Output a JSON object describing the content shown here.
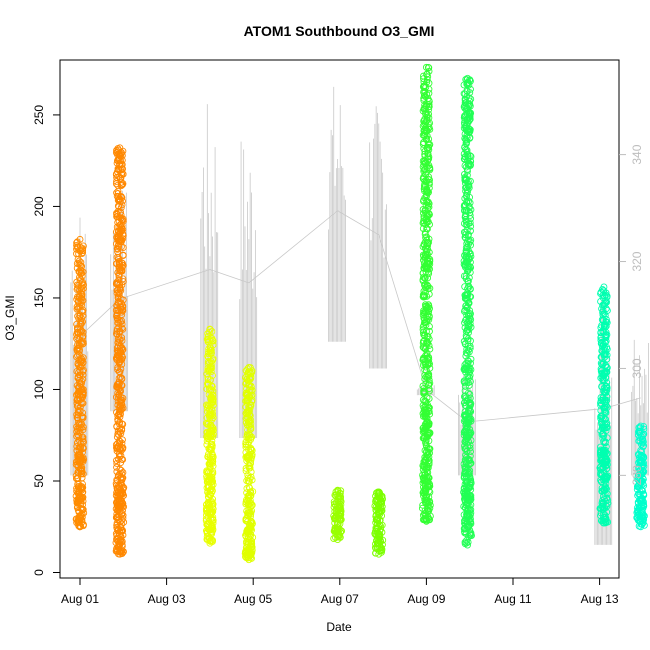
{
  "chart_data": {
    "type": "scatter",
    "title": "ATOM1 Southbound O3_GMI",
    "xlabel": "Date",
    "ylabel": "O3_GMI",
    "x_ticks": [
      "Aug 01",
      "Aug 03",
      "Aug 05",
      "Aug 07",
      "Aug 09",
      "Aug 11",
      "Aug 13"
    ],
    "y_ticks": [
      0,
      50,
      100,
      150,
      200,
      250
    ],
    "y_range": [
      -3,
      280
    ],
    "x_range_days": [
      0.0,
      12.5
    ],
    "right_axis": {
      "ticks": [
        280,
        300,
        320,
        340
      ],
      "range": [
        260.8,
        357.7
      ],
      "color": "#bdbdbd"
    },
    "point_color_gradient": [
      "#ff8c00",
      "#ffff00",
      "#66ff00",
      "#00ff66",
      "#00ffd0"
    ],
    "secondary_line_color": "#c8c8c8",
    "clusters": [
      {
        "day": 0.0,
        "min": 25,
        "max": 182,
        "color": "#ff8c00"
      },
      {
        "day": 0.92,
        "min": 10,
        "max": 232,
        "color": "#ff8800"
      },
      {
        "day": 3.0,
        "min": 16,
        "max": 133,
        "color": "#e8ff00"
      },
      {
        "day": 3.9,
        "min": 7,
        "max": 112,
        "color": "#e0ff00"
      },
      {
        "day": 5.95,
        "min": 18,
        "max": 45,
        "color": "#99ff00"
      },
      {
        "day": 6.9,
        "min": 10,
        "max": 44,
        "color": "#7cff00"
      },
      {
        "day": 8.0,
        "min": 28,
        "max": 276,
        "color": "#33ff33"
      },
      {
        "day": 8.95,
        "min": 15,
        "max": 270,
        "color": "#22ff55"
      },
      {
        "day": 12.1,
        "min": 27,
        "max": 156,
        "color": "#00ffb0"
      },
      {
        "day": 12.95,
        "min": 25,
        "max": 80,
        "color": "#00ffcc"
      }
    ],
    "secondary_series": [
      {
        "day": 0.0,
        "min": 280,
        "max": 332
      },
      {
        "day": 0.92,
        "min": 292,
        "max": 334
      },
      {
        "day": 3.0,
        "min": 287,
        "max": 350
      },
      {
        "day": 3.9,
        "min": 287,
        "max": 345
      },
      {
        "day": 5.95,
        "min": 305,
        "max": 354
      },
      {
        "day": 6.9,
        "min": 300,
        "max": 350
      },
      {
        "day": 8.0,
        "min": 295,
        "max": 297
      },
      {
        "day": 8.95,
        "min": 280,
        "max": 300
      },
      {
        "day": 12.1,
        "min": 267,
        "max": 318
      },
      {
        "day": 12.95,
        "min": 280,
        "max": 309
      }
    ],
    "grid": false,
    "legend": "none"
  }
}
